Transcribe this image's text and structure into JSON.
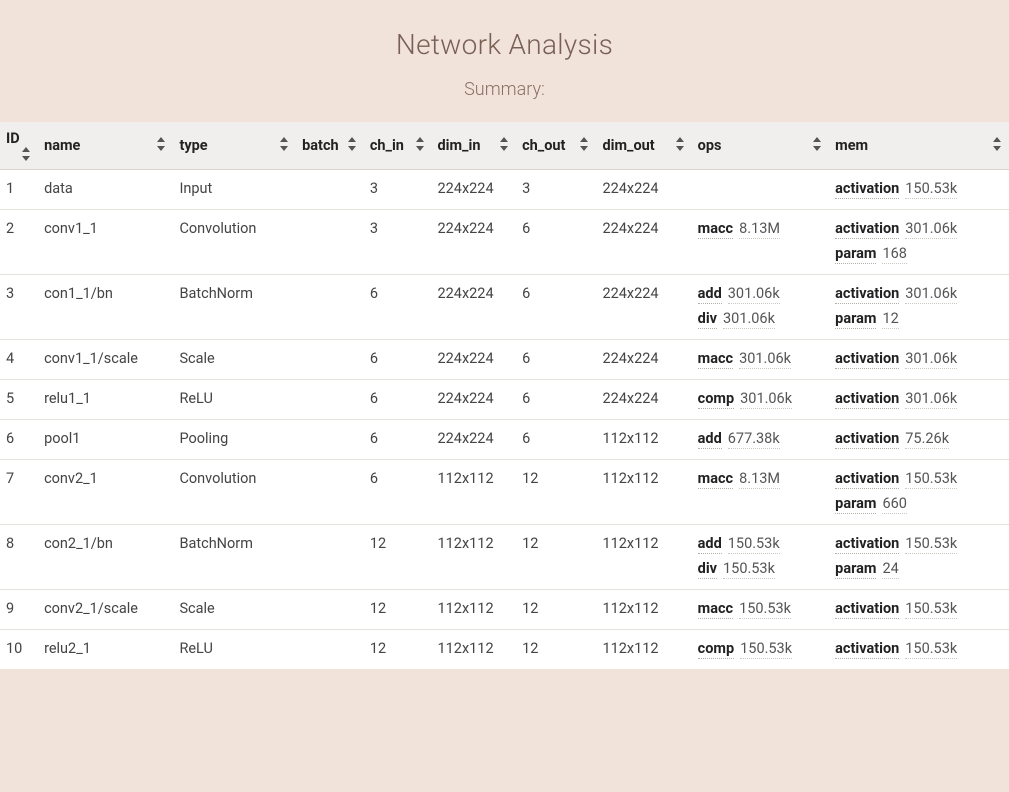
{
  "title": "Network Analysis",
  "subtitle": "Summary:",
  "colors": {
    "page_bg": "#f2e3da",
    "table_bg": "#ffffff",
    "header_bg": "#f0efed",
    "title_color": "#786055",
    "subtitle_color": "#8b6f62",
    "row_border": "#e6e2de",
    "kv_underline": "#b5aea7"
  },
  "columns": [
    {
      "key": "id",
      "label": "ID",
      "width": 36
    },
    {
      "key": "name",
      "label": "name",
      "width": 128
    },
    {
      "key": "type",
      "label": "type",
      "width": 116
    },
    {
      "key": "batch",
      "label": "batch",
      "width": 64
    },
    {
      "key": "ch_in",
      "label": "ch_in",
      "width": 64
    },
    {
      "key": "dim_in",
      "label": "dim_in",
      "width": 80
    },
    {
      "key": "ch_out",
      "label": "ch_out",
      "width": 76
    },
    {
      "key": "dim_out",
      "label": "dim_out",
      "width": 90
    },
    {
      "key": "ops",
      "label": "ops",
      "width": 130
    },
    {
      "key": "mem",
      "label": "mem",
      "width": 170
    }
  ],
  "rows": [
    {
      "id": "1",
      "name": "data",
      "type": "Input",
      "batch": "",
      "ch_in": "3",
      "dim_in": "224x224",
      "ch_out": "3",
      "dim_out": "224x224",
      "ops": [],
      "mem": [
        {
          "k": "activation",
          "v": "150.53k"
        }
      ]
    },
    {
      "id": "2",
      "name": "conv1_1",
      "type": "Convolution",
      "batch": "",
      "ch_in": "3",
      "dim_in": "224x224",
      "ch_out": "6",
      "dim_out": "224x224",
      "ops": [
        {
          "k": "macc",
          "v": "8.13M"
        }
      ],
      "mem": [
        {
          "k": "activation",
          "v": "301.06k"
        },
        {
          "k": "param",
          "v": "168"
        }
      ]
    },
    {
      "id": "3",
      "name": "con1_1/bn",
      "type": "BatchNorm",
      "batch": "",
      "ch_in": "6",
      "dim_in": "224x224",
      "ch_out": "6",
      "dim_out": "224x224",
      "ops": [
        {
          "k": "add",
          "v": "301.06k"
        },
        {
          "k": "div",
          "v": "301.06k"
        }
      ],
      "mem": [
        {
          "k": "activation",
          "v": "301.06k"
        },
        {
          "k": "param",
          "v": "12"
        }
      ]
    },
    {
      "id": "4",
      "name": "conv1_1/scale",
      "type": "Scale",
      "batch": "",
      "ch_in": "6",
      "dim_in": "224x224",
      "ch_out": "6",
      "dim_out": "224x224",
      "ops": [
        {
          "k": "macc",
          "v": "301.06k"
        }
      ],
      "mem": [
        {
          "k": "activation",
          "v": "301.06k"
        }
      ]
    },
    {
      "id": "5",
      "name": "relu1_1",
      "type": "ReLU",
      "batch": "",
      "ch_in": "6",
      "dim_in": "224x224",
      "ch_out": "6",
      "dim_out": "224x224",
      "ops": [
        {
          "k": "comp",
          "v": "301.06k"
        }
      ],
      "mem": [
        {
          "k": "activation",
          "v": "301.06k"
        }
      ]
    },
    {
      "id": "6",
      "name": "pool1",
      "type": "Pooling",
      "batch": "",
      "ch_in": "6",
      "dim_in": "224x224",
      "ch_out": "6",
      "dim_out": "112x112",
      "ops": [
        {
          "k": "add",
          "v": "677.38k"
        }
      ],
      "mem": [
        {
          "k": "activation",
          "v": "75.26k"
        }
      ]
    },
    {
      "id": "7",
      "name": "conv2_1",
      "type": "Convolution",
      "batch": "",
      "ch_in": "6",
      "dim_in": "112x112",
      "ch_out": "12",
      "dim_out": "112x112",
      "ops": [
        {
          "k": "macc",
          "v": "8.13M"
        }
      ],
      "mem": [
        {
          "k": "activation",
          "v": "150.53k"
        },
        {
          "k": "param",
          "v": "660"
        }
      ]
    },
    {
      "id": "8",
      "name": "con2_1/bn",
      "type": "BatchNorm",
      "batch": "",
      "ch_in": "12",
      "dim_in": "112x112",
      "ch_out": "12",
      "dim_out": "112x112",
      "ops": [
        {
          "k": "add",
          "v": "150.53k"
        },
        {
          "k": "div",
          "v": "150.53k"
        }
      ],
      "mem": [
        {
          "k": "activation",
          "v": "150.53k"
        },
        {
          "k": "param",
          "v": "24"
        }
      ]
    },
    {
      "id": "9",
      "name": "conv2_1/scale",
      "type": "Scale",
      "batch": "",
      "ch_in": "12",
      "dim_in": "112x112",
      "ch_out": "12",
      "dim_out": "112x112",
      "ops": [
        {
          "k": "macc",
          "v": "150.53k"
        }
      ],
      "mem": [
        {
          "k": "activation",
          "v": "150.53k"
        }
      ]
    },
    {
      "id": "10",
      "name": "relu2_1",
      "type": "ReLU",
      "batch": "",
      "ch_in": "12",
      "dim_in": "112x112",
      "ch_out": "12",
      "dim_out": "112x112",
      "ops": [
        {
          "k": "comp",
          "v": "150.53k"
        }
      ],
      "mem": [
        {
          "k": "activation",
          "v": "150.53k"
        }
      ]
    }
  ],
  "watermark": ""
}
